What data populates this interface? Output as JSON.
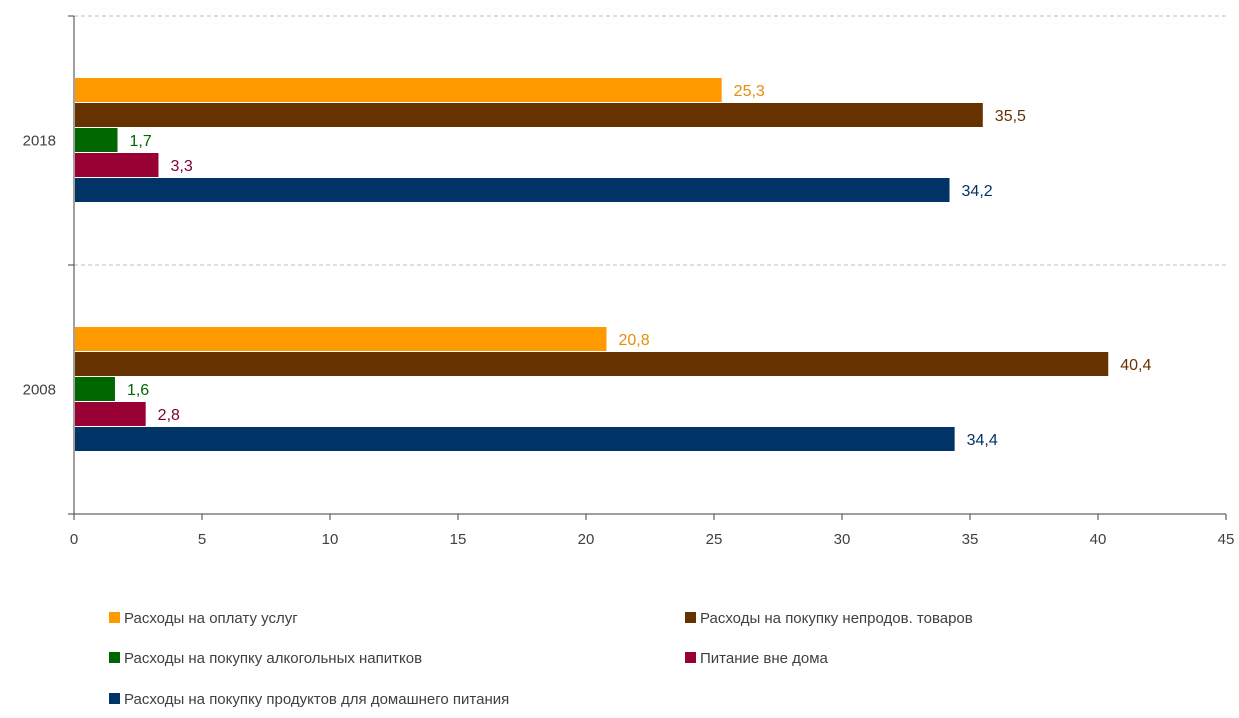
{
  "chart_data": {
    "type": "bar",
    "orientation": "horizontal",
    "categories": [
      "2018",
      "2008"
    ],
    "xlim": [
      0,
      45
    ],
    "xticks": [
      0,
      5,
      10,
      15,
      20,
      25,
      30,
      35,
      40,
      45
    ],
    "tick_labels": [
      "0",
      "5",
      "10",
      "15",
      "20",
      "25",
      "30",
      "35",
      "40",
      "45"
    ],
    "title": "",
    "xlabel": "",
    "ylabel": "",
    "grid": "horizontal dashed lines between categories",
    "legend_position": "bottom",
    "series": [
      {
        "name": "Расходы на оплату услуг",
        "color": "#FF9900",
        "label_color": "#E38E08",
        "values": [
          25.3,
          20.8
        ],
        "labels": [
          "25,3",
          "20,8"
        ]
      },
      {
        "name": "Расходы на покупку непродов. товаров",
        "color": "#663300",
        "label_color": "#663300",
        "values": [
          35.5,
          40.4
        ],
        "labels": [
          "35,5",
          "40,4"
        ]
      },
      {
        "name": "Расходы на покупку алкогольных напитков",
        "color": "#006600",
        "label_color": "#006600",
        "values": [
          1.7,
          1.6
        ],
        "labels": [
          "1,7",
          "1,6"
        ]
      },
      {
        "name": "Питание вне дома",
        "color": "#990033",
        "label_color": "#7A0033",
        "values": [
          3.3,
          2.8
        ],
        "labels": [
          "3,3",
          "2,8"
        ]
      },
      {
        "name": "Расходы на покупку продуктов для домашнего питания",
        "color": "#003366",
        "label_color": "#003366",
        "values": [
          34.2,
          34.4
        ],
        "labels": [
          "34,2",
          "34,4"
        ]
      }
    ]
  }
}
